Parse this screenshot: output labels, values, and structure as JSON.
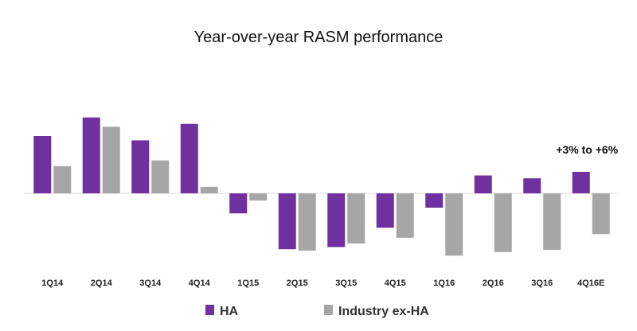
{
  "chart_data": {
    "type": "bar",
    "title": "Year-over-year RASM performance",
    "xlabel": "",
    "ylabel": "",
    "categories": [
      "1Q14",
      "2Q14",
      "3Q14",
      "4Q14",
      "1Q15",
      "2Q15",
      "3Q15",
      "4Q15",
      "1Q16",
      "2Q16",
      "3Q16",
      "4Q16E"
    ],
    "series": [
      {
        "name": "HA",
        "color": "#7030a0",
        "values": [
          8.0,
          10.6,
          7.4,
          9.7,
          -2.8,
          -7.8,
          -7.5,
          -4.8,
          -2.0,
          2.5,
          2.1,
          3.0
        ]
      },
      {
        "name": "Industry ex-HA",
        "color": "#a6a6a6",
        "values": [
          3.8,
          9.3,
          4.6,
          0.9,
          -1.0,
          -8.0,
          -7.0,
          -6.2,
          -8.7,
          -8.2,
          -7.9,
          -5.7
        ]
      }
    ],
    "ylim": [
      -11,
      13
    ],
    "grid": false,
    "legend": "bottom-left",
    "annotations": [
      {
        "text": "+3% to +6%",
        "category": "4Q16E"
      }
    ]
  }
}
